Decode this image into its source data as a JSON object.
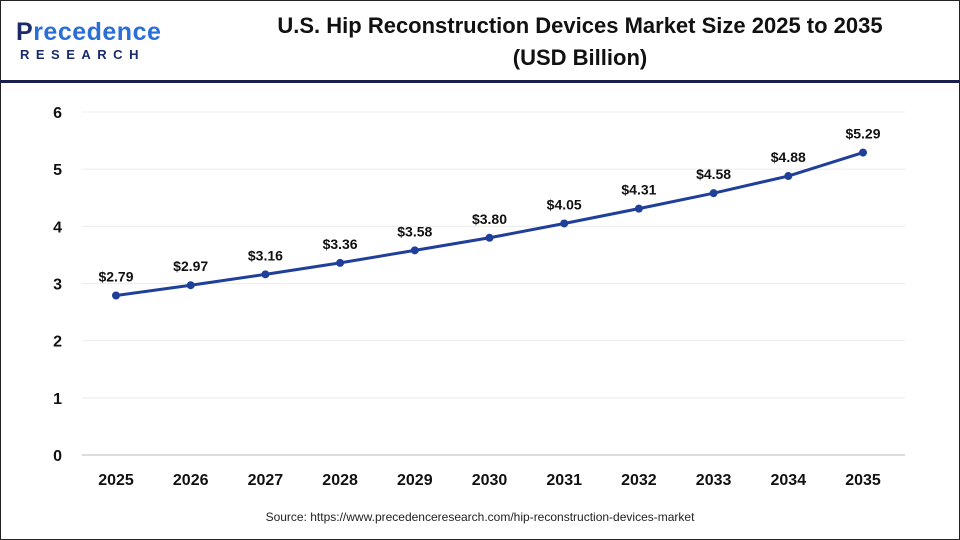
{
  "logo": {
    "text_main_1": "P",
    "text_main_2": "recedence",
    "text_sub": "RESEARCH"
  },
  "header": {
    "title_line1": "U.S. Hip Reconstruction Devices Market Size 2025 to 2035",
    "title_line2": "(USD Billion)"
  },
  "chart_data": {
    "type": "line",
    "title": "U.S. Hip Reconstruction Devices Market Size 2025 to 2035 (USD Billion)",
    "categories": [
      "2025",
      "2026",
      "2027",
      "2028",
      "2029",
      "2030",
      "2031",
      "2032",
      "2033",
      "2034",
      "2035"
    ],
    "values": [
      2.79,
      2.97,
      3.16,
      3.36,
      3.58,
      3.8,
      4.05,
      4.31,
      4.58,
      4.88,
      5.29
    ],
    "data_labels": [
      "$2.79",
      "$2.97",
      "$3.16",
      "$3.36",
      "$3.58",
      "$3.80",
      "$4.05",
      "$4.31",
      "$4.58",
      "$4.88",
      "$5.29"
    ],
    "yticks": [
      "0",
      "1",
      "2",
      "3",
      "4",
      "5",
      "6"
    ],
    "ylim": [
      0,
      6
    ],
    "grid": true,
    "line_color": "#1f3f9a"
  },
  "source": "Source: https://www.precedenceresearch.com/hip-reconstruction-devices-market"
}
